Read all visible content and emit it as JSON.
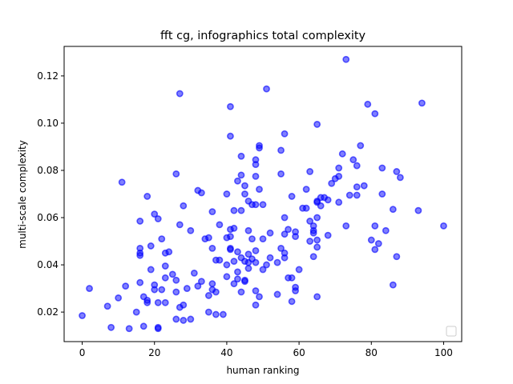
{
  "chart_data": {
    "type": "scatter",
    "title": "fft cg, infographics total complexity",
    "xlabel": "human ranking",
    "ylabel": "multi-scale complexity",
    "xlim": [
      -5,
      105
    ],
    "ylim": [
      0.0075,
      0.1325
    ],
    "xticks": [
      0,
      20,
      40,
      60,
      80,
      100
    ],
    "xtick_labels": [
      "0",
      "20",
      "40",
      "60",
      "80",
      "100"
    ],
    "yticks": [
      0.02,
      0.04,
      0.06,
      0.08,
      0.1,
      0.12
    ],
    "ytick_labels": [
      "0.02",
      "0.04",
      "0.06",
      "0.08",
      "0.10",
      "0.12"
    ],
    "grid": false,
    "legend": "lower-right, empty",
    "marker_color": "#0000ff",
    "marker_fill_opacity": 0.5,
    "series": [
      {
        "points": [
          [
            0,
            0.0185
          ],
          [
            2,
            0.03
          ],
          [
            7,
            0.0225
          ],
          [
            8,
            0.0135
          ],
          [
            10,
            0.026
          ],
          [
            11,
            0.075
          ],
          [
            12,
            0.031
          ],
          [
            13,
            0.013
          ],
          [
            15,
            0.02
          ],
          [
            16,
            0.0585
          ],
          [
            16,
            0.047
          ],
          [
            16,
            0.045
          ],
          [
            16,
            0.044
          ],
          [
            16,
            0.0325
          ],
          [
            17,
            0.014
          ],
          [
            17,
            0.0265
          ],
          [
            18,
            0.069
          ],
          [
            18,
            0.025
          ],
          [
            18,
            0.024
          ],
          [
            19,
            0.048
          ],
          [
            19,
            0.038
          ],
          [
            20,
            0.0615
          ],
          [
            20,
            0.0315
          ],
          [
            20,
            0.0295
          ],
          [
            21,
            0.0595
          ],
          [
            21,
            0.0135
          ],
          [
            21,
            0.013
          ],
          [
            21,
            0.024
          ],
          [
            22,
            0.051
          ],
          [
            22,
            0.0295
          ],
          [
            23,
            0.045
          ],
          [
            23,
            0.0395
          ],
          [
            23,
            0.0345
          ],
          [
            23,
            0.024
          ],
          [
            24,
            0.0455
          ],
          [
            25,
            0.036
          ],
          [
            26,
            0.0285
          ],
          [
            26,
            0.017
          ],
          [
            26,
            0.0785
          ],
          [
            26,
            0.0335
          ],
          [
            27,
            0.1125
          ],
          [
            27,
            0.057
          ],
          [
            27,
            0.022
          ],
          [
            28,
            0.065
          ],
          [
            28,
            0.023
          ],
          [
            28,
            0.0165
          ],
          [
            29,
            0.03
          ],
          [
            30,
            0.0545
          ],
          [
            30,
            0.017
          ],
          [
            31,
            0.0365
          ],
          [
            32,
            0.0715
          ],
          [
            32,
            0.031
          ],
          [
            33,
            0.0705
          ],
          [
            33,
            0.033
          ],
          [
            34,
            0.051
          ],
          [
            35,
            0.0515
          ],
          [
            35,
            0.027
          ],
          [
            35,
            0.02
          ],
          [
            36,
            0.0625
          ],
          [
            36,
            0.047
          ],
          [
            36,
            0.032
          ],
          [
            36,
            0.0295
          ],
          [
            37,
            0.019
          ],
          [
            37,
            0.0285
          ],
          [
            37,
            0.042
          ],
          [
            38,
            0.057
          ],
          [
            38,
            0.042
          ],
          [
            39,
            0.019
          ],
          [
            40,
            0.0515
          ],
          [
            40,
            0.04
          ],
          [
            40,
            0.035
          ],
          [
            40,
            0.07
          ],
          [
            41,
            0.107
          ],
          [
            41,
            0.0945
          ],
          [
            41,
            0.055
          ],
          [
            41,
            0.052
          ],
          [
            41,
            0.047
          ],
          [
            41,
            0.0465
          ],
          [
            42,
            0.063
          ],
          [
            42,
            0.0555
          ],
          [
            42,
            0.0415
          ],
          [
            42,
            0.032
          ],
          [
            43,
            0.0755
          ],
          [
            43,
            0.0455
          ],
          [
            43,
            0.037
          ],
          [
            43,
            0.034
          ],
          [
            44,
            0.086
          ],
          [
            44,
            0.078
          ],
          [
            44,
            0.063
          ],
          [
            44,
            0.043
          ],
          [
            44,
            0.0285
          ],
          [
            45,
            0.0735
          ],
          [
            45,
            0.07
          ],
          [
            45,
            0.0415
          ],
          [
            45,
            0.0335
          ],
          [
            45,
            0.033
          ],
          [
            46,
            0.067
          ],
          [
            46,
            0.0545
          ],
          [
            46,
            0.0445
          ],
          [
            46,
            0.041
          ],
          [
            46,
            0.0385
          ],
          [
            47,
            0.0655
          ],
          [
            47,
            0.051
          ],
          [
            47,
            0.0425
          ],
          [
            48,
            0.0845
          ],
          [
            48,
            0.0825
          ],
          [
            48,
            0.0775
          ],
          [
            48,
            0.0655
          ],
          [
            48,
            0.046
          ],
          [
            48,
            0.041
          ],
          [
            48,
            0.029
          ],
          [
            48,
            0.023
          ],
          [
            49,
            0.0905
          ],
          [
            49,
            0.0895
          ],
          [
            49,
            0.072
          ],
          [
            49,
            0.0265
          ],
          [
            50,
            0.0655
          ],
          [
            50,
            0.051
          ],
          [
            50,
            0.038
          ],
          [
            51,
            0.1145
          ],
          [
            51,
            0.04
          ],
          [
            52,
            0.0535
          ],
          [
            52,
            0.043
          ],
          [
            54,
            0.041
          ],
          [
            54,
            0.0275
          ],
          [
            55,
            0.0885
          ],
          [
            55,
            0.0785
          ],
          [
            55,
            0.047
          ],
          [
            56,
            0.0955
          ],
          [
            56,
            0.06
          ],
          [
            56,
            0.053
          ],
          [
            56,
            0.045
          ],
          [
            56,
            0.043
          ],
          [
            57,
            0.055
          ],
          [
            57,
            0.0345
          ],
          [
            58,
            0.069
          ],
          [
            58,
            0.0345
          ],
          [
            58,
            0.0245
          ],
          [
            59,
            0.054
          ],
          [
            59,
            0.052
          ],
          [
            59,
            0.0305
          ],
          [
            59,
            0.029
          ],
          [
            60,
            0.038
          ],
          [
            61,
            0.064
          ],
          [
            62,
            0.072
          ],
          [
            62,
            0.064
          ],
          [
            63,
            0.0795
          ],
          [
            63,
            0.0585
          ],
          [
            63,
            0.05
          ],
          [
            64,
            0.0565
          ],
          [
            64,
            0.0545
          ],
          [
            64,
            0.0535
          ],
          [
            64,
            0.0435
          ],
          [
            65,
            0.0995
          ],
          [
            65,
            0.067
          ],
          [
            65,
            0.0665
          ],
          [
            65,
            0.06
          ],
          [
            65,
            0.0505
          ],
          [
            65,
            0.0475
          ],
          [
            65,
            0.0265
          ],
          [
            66,
            0.065
          ],
          [
            66,
            0.0685
          ],
          [
            67,
            0.0685
          ],
          [
            68,
            0.0675
          ],
          [
            68,
            0.0525
          ],
          [
            69,
            0.0745
          ],
          [
            70,
            0.0765
          ],
          [
            71,
            0.081
          ],
          [
            71,
            0.0775
          ],
          [
            71,
            0.0665
          ],
          [
            72,
            0.087
          ],
          [
            73,
            0.127
          ],
          [
            73,
            0.0565
          ],
          [
            74,
            0.0695
          ],
          [
            75,
            0.0845
          ],
          [
            76,
            0.082
          ],
          [
            76,
            0.073
          ],
          [
            76,
            0.0695
          ],
          [
            77,
            0.0905
          ],
          [
            78,
            0.0735
          ],
          [
            79,
            0.108
          ],
          [
            80,
            0.0505
          ],
          [
            81,
            0.104
          ],
          [
            81,
            0.0565
          ],
          [
            81,
            0.0465
          ],
          [
            82,
            0.049
          ],
          [
            83,
            0.081
          ],
          [
            83,
            0.07
          ],
          [
            84,
            0.0545
          ],
          [
            86,
            0.0635
          ],
          [
            86,
            0.0315
          ],
          [
            87,
            0.0795
          ],
          [
            87,
            0.0435
          ],
          [
            88,
            0.077
          ],
          [
            93,
            0.063
          ],
          [
            94,
            0.1085
          ],
          [
            100,
            0.0565
          ]
        ]
      }
    ]
  }
}
